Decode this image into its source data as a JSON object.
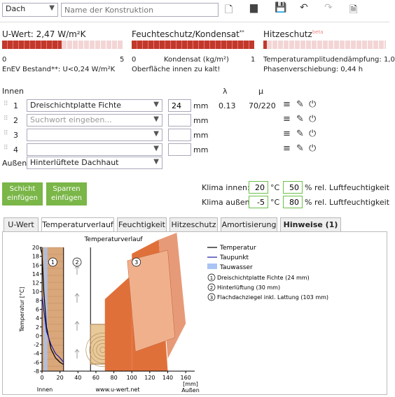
{
  "toolbar": {
    "type_value": "Dach",
    "name_placeholder": "Name der Konstruktion"
  },
  "uwert": {
    "title": "U-Wert: 2,47 W/m²K",
    "scale_min": "0",
    "scale_max": "5",
    "note": "EnEV Bestand**: U<0,24 W/m²K",
    "fill_fraction": 0.49
  },
  "feuchte": {
    "title": "Feuchteschutz/Kondensat",
    "superscript": "**",
    "scale_min": "0",
    "scale_label": "Kondensat (kg/m²)",
    "scale_max": "1",
    "note": "Oberfläche innen zu kalt!",
    "fill_fraction": 1.0
  },
  "hitze": {
    "title": "Hitzeschutz",
    "superscript": "beta",
    "line1": "Temperaturamplitudendämpfung: 1,0",
    "line2": "Phasenverschiebung: 0,44 h",
    "fill_fraction": 0.03
  },
  "layers": {
    "inside_label": "Innen",
    "outside_label": "Außen",
    "lambda_header": "λ",
    "mu_header": "μ",
    "unit": "mm",
    "rows": [
      {
        "num": "1",
        "material": "Dreischichtplatte Fichte",
        "thickness": "24",
        "lambda": "0.13",
        "mu": "70/220"
      },
      {
        "num": "2",
        "material": "",
        "placeholder": "Suchwort eingeben...",
        "thickness": "",
        "lambda": "",
        "mu": ""
      },
      {
        "num": "3",
        "material": "",
        "thickness": "",
        "lambda": "",
        "mu": ""
      },
      {
        "num": "4",
        "material": "",
        "thickness": "",
        "lambda": "",
        "mu": ""
      }
    ],
    "outside_value": "Hinterlüftete Dachhaut"
  },
  "buttons": {
    "insert_layer": [
      "Schicht",
      "einfügen"
    ],
    "insert_rafter": [
      "Sparren",
      "einfügen"
    ]
  },
  "climate": {
    "inside_label": "Klima innen:",
    "inside_temp": "20",
    "inside_hum": "50",
    "outside_label": "Klima außen:",
    "outside_temp": "-5",
    "outside_hum": "80",
    "temp_unit": "°C",
    "hum_unit": "% rel. Luftfeuchtigkeit"
  },
  "tabs": [
    "U-Wert",
    "Temperaturverlauf",
    "Feuchtigkeit",
    "Hitzeschutz",
    "Amortisierung",
    "Hinweise (1)"
  ],
  "colors": {
    "accent_green": "#7ab648",
    "bar_red": "#c0392b",
    "wood": "#d9a77a",
    "roof": "#e0703a",
    "dewwater": "#a9c4f5"
  },
  "chart_data": {
    "type": "line",
    "title": "Temperaturverlauf",
    "ylabel": "Temperatur [°C]",
    "xlabel": "[mm]",
    "x_inside": "Innen",
    "x_outside": "Außen",
    "website": "www.u-wert.net",
    "ylim": [
      -8,
      20
    ],
    "xlim": [
      0,
      170
    ],
    "yticks": [
      "20",
      "18",
      "16",
      "14",
      "12",
      "10",
      "8",
      "6",
      "4",
      "2",
      "0",
      "-2",
      "-4",
      "-6",
      "-8"
    ],
    "xticks": [
      "0",
      "20",
      "40",
      "60",
      "80",
      "100",
      "120",
      "140",
      "160"
    ],
    "legend": [
      "Temperatur",
      "Taupunkt",
      "Tauwasser"
    ],
    "layer_legend": [
      "Dreischichtplatte Fichte (24 mm)",
      "Hinterlüftung (30 mm)",
      "Flachdachziegel inkl. Lattung (103 mm)"
    ],
    "series": [
      {
        "name": "Temperatur",
        "x": [
          -2,
          0,
          2,
          5,
          10,
          15,
          20,
          24
        ],
        "y": [
          20,
          18.5,
          10,
          2,
          -3,
          -5,
          -6,
          -6.5
        ]
      },
      {
        "name": "Taupunkt",
        "x": [
          0,
          5,
          10,
          15,
          20,
          24
        ],
        "y": [
          9,
          1,
          -2,
          -4,
          -5,
          -6
        ]
      }
    ]
  }
}
